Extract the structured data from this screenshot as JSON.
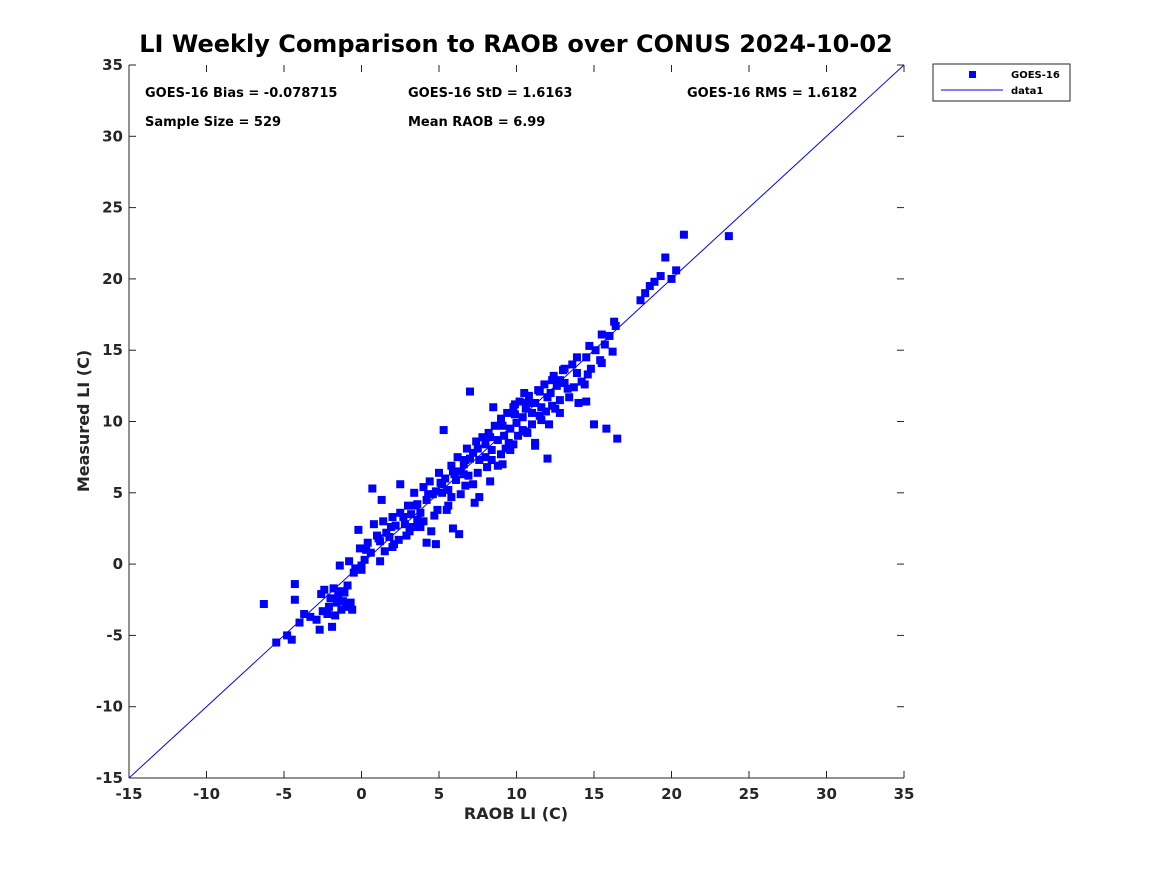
{
  "chart_data": {
    "type": "scatter",
    "title": "LI Weekly Comparison to RAOB over CONUS 2024-10-02",
    "xlabel": "RAOB LI (C)",
    "ylabel": "Measured LI (C)",
    "xlim": [
      -15,
      35
    ],
    "ylim": [
      -15,
      35
    ],
    "xticks": [
      "-15",
      "-10",
      "-5",
      "0",
      "5",
      "10",
      "15",
      "20",
      "25",
      "30",
      "35"
    ],
    "yticks": [
      "-15",
      "-10",
      "-5",
      "0",
      "5",
      "10",
      "15",
      "20",
      "25",
      "30",
      "35"
    ],
    "stats": [
      "GOES-16 Bias = -0.078715",
      "GOES-16 StD = 1.6163",
      "GOES-16 RMS = 1.6182",
      "Sample Size = 529",
      "Mean RAOB = 6.99"
    ],
    "legend": {
      "position": "top-right-outside",
      "entries": [
        "GOES-16",
        "data1"
      ]
    },
    "colors": {
      "marker": "#0000FF",
      "line": "#0000FF",
      "axis": "#262626"
    },
    "series": [
      {
        "name": "GOES-16",
        "marker": "square",
        "x": [
          -6.3,
          -5.5,
          -4.8,
          -4.5,
          -4.3,
          -4.3,
          -4.0,
          -3.7,
          -2.7,
          -2.6,
          -2.5,
          -2.4,
          -2.2,
          -2.1,
          -2.0,
          -1.9,
          -1.8,
          -1.7,
          -1.6,
          -1.5,
          -1.4,
          -1.3,
          -1.2,
          -1.1,
          -1.0,
          -0.9,
          -0.7,
          -0.5,
          -0.4,
          -0.2,
          -0.1,
          0.0,
          0.2,
          0.4,
          0.6,
          0.8,
          1.0,
          1.2,
          1.4,
          1.6,
          1.8,
          2.0,
          2.2,
          2.5,
          2.8,
          3.0,
          3.2,
          3.4,
          3.6,
          3.8,
          4.0,
          4.2,
          4.4,
          4.6,
          4.8,
          5.0,
          5.2,
          5.4,
          5.6,
          5.8,
          6.0,
          6.2,
          6.4,
          6.6,
          6.8,
          7.0,
          7.2,
          7.4,
          7.6,
          7.8,
          8.0,
          8.2,
          8.4,
          8.6,
          8.8,
          9.0,
          9.2,
          9.4,
          9.6,
          9.8,
          10.0,
          10.2,
          10.4,
          10.6,
          10.8,
          11.0,
          11.2,
          11.4,
          11.6,
          11.8,
          12.0,
          12.2,
          12.4,
          12.6,
          12.8,
          13.0,
          13.3,
          13.6,
          13.9,
          14.2,
          14.5,
          14.8,
          15.1,
          15.4,
          15.7,
          16.0,
          16.4,
          18.0,
          18.3,
          18.6,
          18.9,
          19.3,
          19.6,
          20.0,
          20.3,
          20.8,
          23.7,
          0.7,
          1.3,
          2.5,
          3.3,
          4.2,
          4.8,
          5.5,
          6.1,
          6.9,
          7.6,
          8.3,
          9.1,
          9.9,
          10.6,
          11.5,
          12.3,
          13.1,
          14.0,
          15.0,
          3.6,
          4.5,
          5.2,
          5.9,
          6.6,
          7.3,
          8.0,
          8.8,
          9.6,
          10.4,
          11.2,
          12.1,
          2.0,
          2.9,
          3.8,
          4.7,
          5.6,
          6.4,
          7.2,
          8.1,
          9.0,
          9.8,
          10.7,
          11.6,
          12.5,
          13.4,
          14.4,
          1.5,
          2.4,
          3.1,
          4.0,
          4.9,
          5.8,
          6.7,
          7.5,
          8.4,
          9.3,
          10.1,
          11.0,
          11.9,
          12.8,
          13.7,
          14.6,
          15.5,
          16.2,
          -0.8,
          0.3,
          1.1,
          1.9,
          2.7,
          3.5,
          4.3,
          5.1,
          5.9,
          6.7,
          7.5,
          8.3,
          9.1,
          9.9,
          10.7,
          11.5,
          12.3,
          13.1,
          13.9,
          14.7,
          15.5,
          16.3,
          5.3,
          6.3,
          7.0,
          8.5,
          9.5,
          10.5,
          11.2,
          12.0,
          12.8,
          14.5,
          15.8,
          16.5,
          -1.4,
          -0.6,
          -2.9,
          -3.3,
          0.0,
          1.2,
          2.1
        ],
        "y": [
          -2.8,
          -5.5,
          -5.0,
          -5.3,
          -2.5,
          -1.4,
          -4.1,
          -3.5,
          -4.6,
          -2.1,
          -3.3,
          -1.8,
          -3.5,
          -3.0,
          -2.4,
          -4.4,
          -1.7,
          -3.6,
          -2.7,
          -2.2,
          -1.9,
          -3.2,
          -2.6,
          -2.0,
          -3.0,
          -1.5,
          -2.7,
          -0.6,
          -0.3,
          2.4,
          1.1,
          -0.1,
          0.3,
          1.5,
          0.8,
          2.8,
          2.0,
          1.6,
          3.0,
          2.2,
          1.9,
          3.3,
          2.7,
          3.6,
          2.8,
          4.1,
          3.5,
          5.0,
          4.2,
          3.6,
          5.4,
          4.5,
          5.8,
          4.9,
          5.1,
          6.4,
          5.6,
          6.0,
          5.2,
          6.9,
          6.3,
          7.5,
          6.5,
          7.0,
          8.1,
          7.4,
          7.8,
          8.6,
          7.3,
          8.9,
          8.4,
          9.2,
          8.0,
          9.7,
          8.7,
          10.2,
          9.0,
          10.6,
          9.5,
          11.0,
          9.9,
          11.4,
          10.3,
          10.9,
          11.8,
          10.6,
          11.3,
          12.2,
          11.0,
          12.6,
          11.7,
          12.0,
          13.2,
          12.5,
          12.9,
          13.6,
          12.3,
          14.0,
          13.4,
          12.8,
          14.5,
          13.7,
          15.0,
          14.3,
          15.4,
          16.0,
          16.7,
          18.5,
          19.0,
          19.5,
          19.8,
          20.2,
          21.5,
          20.0,
          20.6,
          23.1,
          23.0,
          5.3,
          4.5,
          5.6,
          2.6,
          1.5,
          1.4,
          3.8,
          5.9,
          6.2,
          4.7,
          5.8,
          7.0,
          11.2,
          9.3,
          10.4,
          11.1,
          12.7,
          11.3,
          9.8,
          3.1,
          2.3,
          5.0,
          2.5,
          6.3,
          4.3,
          7.5,
          6.9,
          8.0,
          9.4,
          8.5,
          9.8,
          1.2,
          2.0,
          2.6,
          3.4,
          4.1,
          4.9,
          5.6,
          6.8,
          7.7,
          8.4,
          9.2,
          10.1,
          10.9,
          11.7,
          12.6,
          0.9,
          1.7,
          2.3,
          3.0,
          3.8,
          4.7,
          5.5,
          6.4,
          7.3,
          8.1,
          9.0,
          9.8,
          10.7,
          11.5,
          12.4,
          13.3,
          14.1,
          14.9,
          0.2,
          1.0,
          1.8,
          2.6,
          3.3,
          4.1,
          4.9,
          5.7,
          6.5,
          7.3,
          8.1,
          8.9,
          9.7,
          10.5,
          11.3,
          12.1,
          12.9,
          13.7,
          14.5,
          15.3,
          16.1,
          17.0,
          9.4,
          2.1,
          12.1,
          11.0,
          8.5,
          12.0,
          8.3,
          7.4,
          10.6,
          11.4,
          9.5,
          8.8,
          -0.1,
          -3.2,
          -3.9,
          -3.7,
          -0.4,
          0.2,
          1.4
        ]
      },
      {
        "name": "data1",
        "type": "line",
        "x": [
          -15,
          35
        ],
        "y": [
          -15,
          35
        ]
      }
    ]
  }
}
